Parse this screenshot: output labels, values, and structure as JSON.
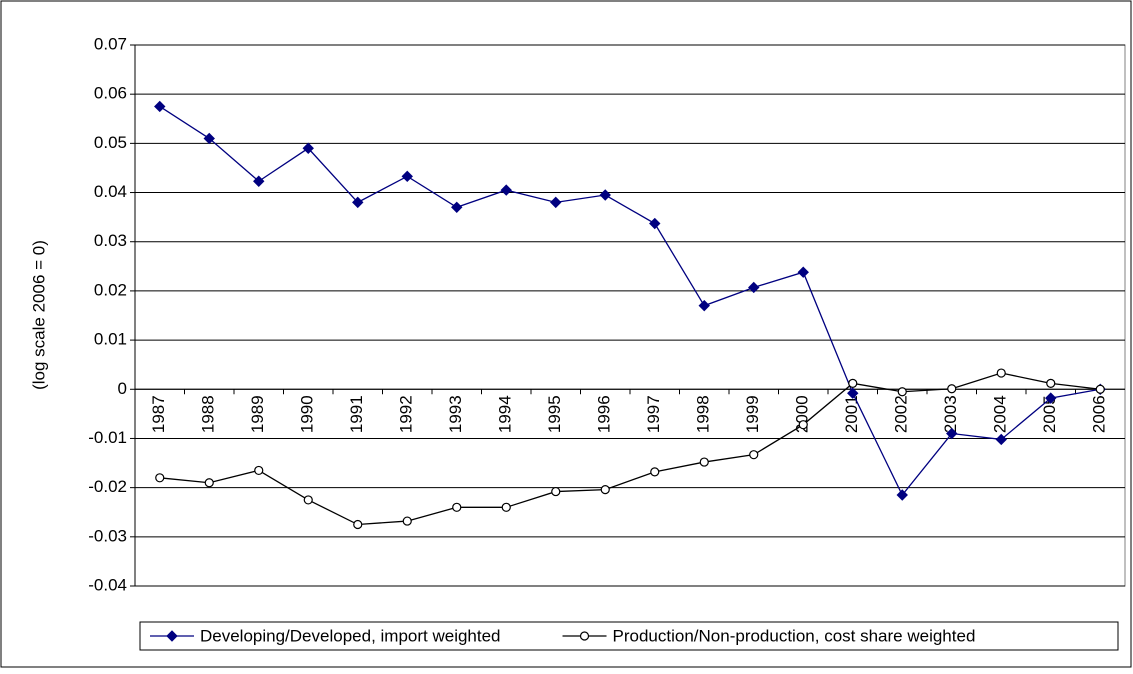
{
  "chart_data": {
    "type": "line",
    "y_label": "(log scale 2006 = 0)",
    "categories": [
      "1987",
      "1988",
      "1989",
      "1990",
      "1991",
      "1992",
      "1993",
      "1994",
      "1995",
      "1996",
      "1997",
      "1998",
      "1999",
      "2000",
      "2001",
      "2002",
      "2003",
      "2004",
      "2005",
      "2006"
    ],
    "series": [
      {
        "name": "Developing/Developed, import weighted",
        "color": "#000080",
        "marker": "diamond",
        "values": [
          0.0575,
          0.051,
          0.0423,
          0.049,
          0.038,
          0.0433,
          0.037,
          0.0405,
          0.038,
          0.0395,
          0.0337,
          0.017,
          0.0207,
          0.0238,
          -0.0008,
          -0.0215,
          -0.009,
          -0.0102,
          -0.0018,
          0
        ]
      },
      {
        "name": "Production/Non-production, cost share weighted",
        "color": "#000000",
        "marker": "circle",
        "values": [
          -0.018,
          -0.019,
          -0.0165,
          -0.0225,
          -0.0275,
          -0.0268,
          -0.024,
          -0.024,
          -0.0208,
          -0.0204,
          -0.0168,
          -0.0148,
          -0.0133,
          -0.0072,
          0.0012,
          -0.0005,
          0.0001,
          0.0033,
          0.0012,
          0
        ]
      }
    ],
    "ylim": [
      -0.04,
      0.07
    ],
    "yticks": [
      0.07,
      0.06,
      0.05,
      0.04,
      0.03,
      0.02,
      0.01,
      0,
      -0.01,
      -0.02,
      -0.03,
      -0.04
    ],
    "grid": true,
    "legend": "bottom"
  }
}
